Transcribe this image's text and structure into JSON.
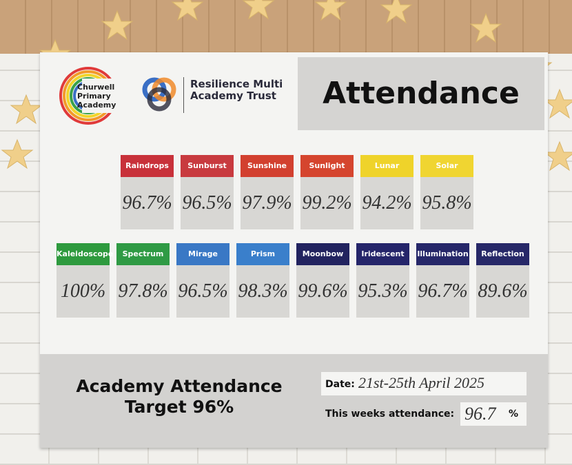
{
  "header": {
    "school": "Churwell Primary Academy",
    "trust": "Resilience Multi Academy Trust",
    "title": "Attendance"
  },
  "classes": [
    [
      {
        "name": "Raindrops",
        "color": "#c8313a",
        "attendance": "96.7%"
      },
      {
        "name": "Sunburst",
        "color": "#c83a3f",
        "attendance": "96.5%"
      },
      {
        "name": "Sunshine",
        "color": "#d2402f",
        "attendance": "97.9%"
      },
      {
        "name": "Sunlight",
        "color": "#d5452e",
        "attendance": "99.2%"
      },
      {
        "name": "Lunar",
        "color": "#efd32a",
        "attendance": "94.2%"
      },
      {
        "name": "Solar",
        "color": "#f0d531",
        "attendance": "95.8%"
      }
    ],
    [
      {
        "name": "Kaleidoscope",
        "color": "#2e9a3e",
        "attendance": "100%"
      },
      {
        "name": "Spectrum",
        "color": "#2f9a44",
        "attendance": "97.8%"
      },
      {
        "name": "Mirage",
        "color": "#3a78c5",
        "attendance": "96.5%"
      },
      {
        "name": "Prism",
        "color": "#3a7fcb",
        "attendance": "98.3%"
      },
      {
        "name": "Moonbow",
        "color": "#22235f",
        "attendance": "99.6%"
      },
      {
        "name": "Iridescent",
        "color": "#25256a",
        "attendance": "95.3%"
      },
      {
        "name": "Illumination",
        "color": "#262769",
        "attendance": "96.7%"
      },
      {
        "name": "Reflection",
        "color": "#272868",
        "attendance": "89.6%"
      }
    ]
  ],
  "footer": {
    "target": "Academy Attendance Target 96%",
    "date_label": "Date:",
    "date": "21st-25th April 2025",
    "week_label": "This weeks attendance:",
    "week_value": "96.7",
    "week_unit": "%"
  }
}
